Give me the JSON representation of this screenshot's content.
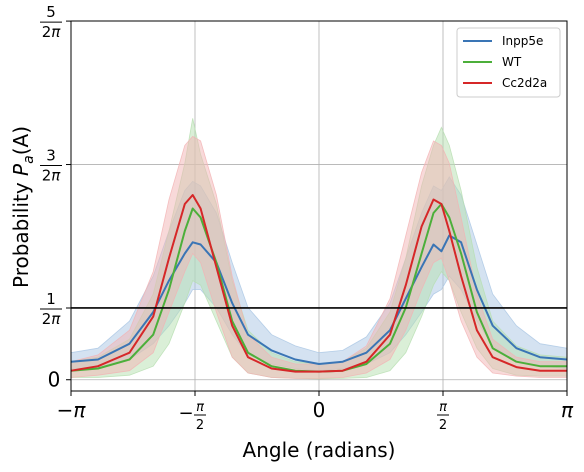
{
  "chart_data": {
    "type": "line",
    "xlabel": "Angle (radians)",
    "ylabel_main": "Probability ",
    "ylabel_var": "P",
    "ylabel_sub": "a",
    "ylabel_tail": "(A)",
    "xlim": [
      -3.14159,
      3.14159
    ],
    "ylim": [
      -0.025,
      0.796
    ],
    "grid": true,
    "legend_position": "upper-right",
    "x_ticks": [
      {
        "value": -3.14159,
        "label": "−π"
      },
      {
        "value": -1.5708,
        "label": "−π/2"
      },
      {
        "value": 0,
        "label": "0"
      },
      {
        "value": 1.5708,
        "label": "π/2"
      },
      {
        "value": 3.14159,
        "label": "π"
      }
    ],
    "y_ticks": [
      {
        "value": 0,
        "label": "0"
      },
      {
        "value": 0.1592,
        "label": "1/2π"
      },
      {
        "value": 0.4775,
        "label": "3/2π"
      },
      {
        "value": 0.7958,
        "label": "5/2π"
      }
    ],
    "reference_line": {
      "y": 0.1592,
      "color": "#000000"
    },
    "x": [
      -3.14159,
      -2.8,
      -2.4,
      -2.1,
      -1.9,
      -1.7,
      -1.6,
      -1.5,
      -1.3,
      -1.1,
      -0.9,
      -0.6,
      -0.3,
      0,
      0.3,
      0.6,
      0.9,
      1.1,
      1.3,
      1.45,
      1.55,
      1.65,
      1.8,
      2.0,
      2.2,
      2.5,
      2.8,
      3.14159
    ],
    "series": [
      {
        "name": "Inpp5e",
        "color": "#3a75b5",
        "band_color": "#a9c5e4",
        "mean": [
          0.04,
          0.045,
          0.08,
          0.15,
          0.22,
          0.28,
          0.305,
          0.3,
          0.26,
          0.17,
          0.1,
          0.065,
          0.045,
          0.035,
          0.04,
          0.06,
          0.11,
          0.18,
          0.25,
          0.3,
          0.285,
          0.32,
          0.305,
          0.2,
          0.12,
          0.07,
          0.05,
          0.045
        ],
        "lower": [
          0.025,
          0.025,
          0.045,
          0.08,
          0.12,
          0.17,
          0.2,
          0.2,
          0.16,
          0.1,
          0.055,
          0.035,
          0.025,
          0.02,
          0.025,
          0.035,
          0.06,
          0.1,
          0.15,
          0.19,
          0.2,
          0.23,
          0.2,
          0.13,
          0.075,
          0.04,
          0.03,
          0.025
        ],
        "upper": [
          0.06,
          0.07,
          0.13,
          0.23,
          0.33,
          0.42,
          0.44,
          0.43,
          0.37,
          0.26,
          0.16,
          0.1,
          0.075,
          0.06,
          0.065,
          0.095,
          0.17,
          0.27,
          0.37,
          0.43,
          0.42,
          0.45,
          0.41,
          0.3,
          0.19,
          0.12,
          0.08,
          0.07
        ]
      },
      {
        "name": "WT",
        "color": "#4caf3a",
        "band_color": "#b6dfb0",
        "mean": [
          0.02,
          0.025,
          0.045,
          0.1,
          0.2,
          0.33,
          0.38,
          0.36,
          0.26,
          0.13,
          0.06,
          0.03,
          0.02,
          0.018,
          0.02,
          0.035,
          0.08,
          0.16,
          0.28,
          0.37,
          0.39,
          0.36,
          0.28,
          0.15,
          0.07,
          0.04,
          0.03,
          0.03
        ],
        "lower": [
          0.005,
          0.005,
          0.01,
          0.03,
          0.08,
          0.17,
          0.22,
          0.21,
          0.13,
          0.05,
          0.015,
          0.005,
          0.003,
          0.002,
          0.003,
          0.005,
          0.02,
          0.06,
          0.14,
          0.21,
          0.24,
          0.22,
          0.15,
          0.07,
          0.025,
          0.01,
          0.008,
          0.008
        ],
        "upper": [
          0.04,
          0.05,
          0.09,
          0.19,
          0.33,
          0.48,
          0.58,
          0.5,
          0.39,
          0.22,
          0.11,
          0.06,
          0.04,
          0.035,
          0.04,
          0.07,
          0.15,
          0.27,
          0.43,
          0.52,
          0.56,
          0.52,
          0.42,
          0.25,
          0.13,
          0.075,
          0.055,
          0.05
        ]
      },
      {
        "name": "Cc2d2a",
        "color": "#d62728",
        "band_color": "#f2b3b4",
        "mean": [
          0.02,
          0.03,
          0.06,
          0.14,
          0.27,
          0.39,
          0.41,
          0.38,
          0.25,
          0.12,
          0.05,
          0.025,
          0.018,
          0.018,
          0.02,
          0.04,
          0.1,
          0.21,
          0.34,
          0.4,
          0.39,
          0.33,
          0.23,
          0.11,
          0.05,
          0.028,
          0.02,
          0.02
        ],
        "lower": [
          0.005,
          0.01,
          0.02,
          0.06,
          0.15,
          0.24,
          0.28,
          0.26,
          0.15,
          0.05,
          0.015,
          0.005,
          0.003,
          0.003,
          0.005,
          0.015,
          0.045,
          0.11,
          0.2,
          0.26,
          0.27,
          0.22,
          0.13,
          0.05,
          0.015,
          0.008,
          0.005,
          0.005
        ],
        "upper": [
          0.04,
          0.055,
          0.11,
          0.24,
          0.4,
          0.52,
          0.54,
          0.53,
          0.41,
          0.23,
          0.1,
          0.05,
          0.035,
          0.035,
          0.04,
          0.075,
          0.18,
          0.32,
          0.46,
          0.53,
          0.52,
          0.48,
          0.36,
          0.19,
          0.09,
          0.05,
          0.04,
          0.04
        ]
      }
    ]
  }
}
